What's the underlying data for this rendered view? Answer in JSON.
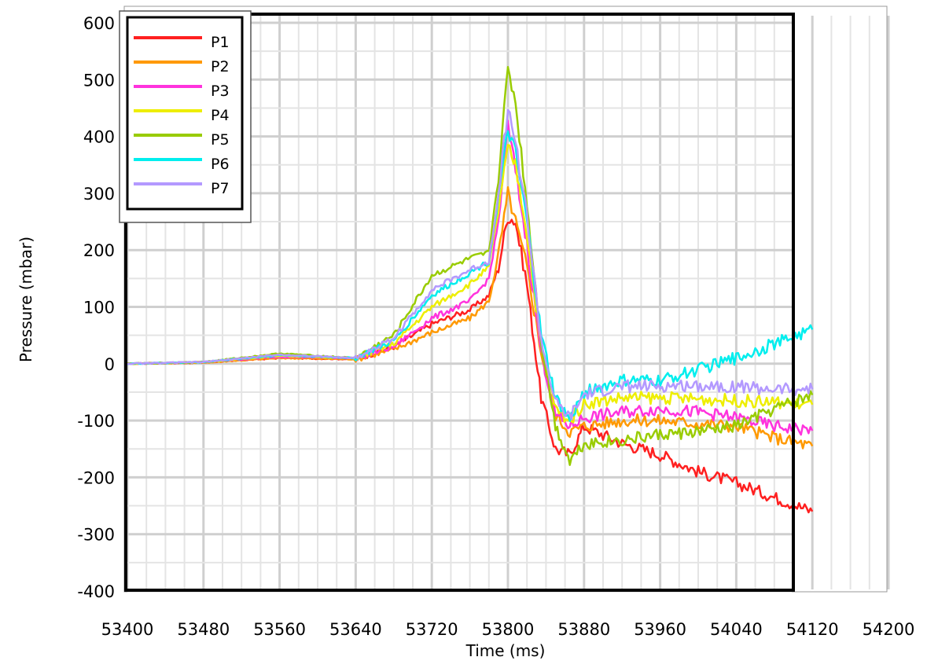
{
  "chart_data": {
    "type": "line",
    "title": "",
    "xlabel": "Time (ms)",
    "ylabel": "Pressure (mbar)",
    "xlim": [
      53400,
      54200
    ],
    "ylim": [
      -400,
      600
    ],
    "x_ticks": [
      "53400",
      "53480",
      "53560",
      "53640",
      "53720",
      "53800",
      "53880",
      "53960",
      "54040",
      "54120",
      "54200"
    ],
    "y_ticks": [
      "600",
      "500",
      "400",
      "300",
      "200",
      "100",
      "0",
      "-100",
      "-200",
      "-300",
      "-400"
    ],
    "grid": true,
    "legend_position": "top-left",
    "x": [
      53400,
      53480,
      53560,
      53640,
      53680,
      53720,
      53760,
      53780,
      53790,
      53800,
      53808,
      53820,
      53835,
      53850,
      53865,
      53880,
      53920,
      53960,
      54000,
      54040,
      54080,
      54120
    ],
    "series": [
      {
        "name": "P1",
        "color": "#ff2020",
        "values": [
          0,
          2,
          10,
          8,
          30,
          70,
          95,
          120,
          170,
          260,
          250,
          140,
          -60,
          -150,
          -160,
          -110,
          -140,
          -160,
          -190,
          -210,
          -235,
          -260
        ]
      },
      {
        "name": "P2",
        "color": "#ff9900",
        "values": [
          0,
          2,
          10,
          8,
          25,
          55,
          80,
          110,
          190,
          300,
          250,
          170,
          20,
          -90,
          -120,
          -110,
          -100,
          -100,
          -105,
          -110,
          -130,
          -145
        ]
      },
      {
        "name": "P3",
        "color": "#ff33dd",
        "values": [
          0,
          3,
          12,
          10,
          30,
          80,
          110,
          150,
          250,
          420,
          340,
          210,
          20,
          -90,
          -110,
          -95,
          -85,
          -80,
          -85,
          -95,
          -110,
          -118
        ]
      },
      {
        "name": "P4",
        "color": "#eeee00",
        "values": [
          0,
          3,
          14,
          10,
          35,
          100,
          140,
          170,
          270,
          380,
          350,
          230,
          30,
          -80,
          -100,
          -70,
          -60,
          -60,
          -62,
          -65,
          -68,
          -72
        ]
      },
      {
        "name": "P5",
        "color": "#99cc00",
        "values": [
          0,
          3,
          18,
          10,
          50,
          155,
          185,
          195,
          330,
          520,
          460,
          280,
          40,
          -110,
          -170,
          -140,
          -135,
          -125,
          -120,
          -110,
          -80,
          -55
        ]
      },
      {
        "name": "P6",
        "color": "#00eeee",
        "values": [
          0,
          3,
          15,
          10,
          40,
          120,
          160,
          180,
          290,
          410,
          370,
          250,
          50,
          -60,
          -100,
          -50,
          -30,
          -30,
          -10,
          10,
          35,
          60
        ]
      },
      {
        "name": "P7",
        "color": "#b399ff",
        "values": [
          0,
          3,
          16,
          10,
          45,
          130,
          165,
          180,
          300,
          450,
          390,
          260,
          40,
          -70,
          -95,
          -55,
          -40,
          -40,
          -38,
          -40,
          -45,
          -45
        ]
      }
    ]
  }
}
